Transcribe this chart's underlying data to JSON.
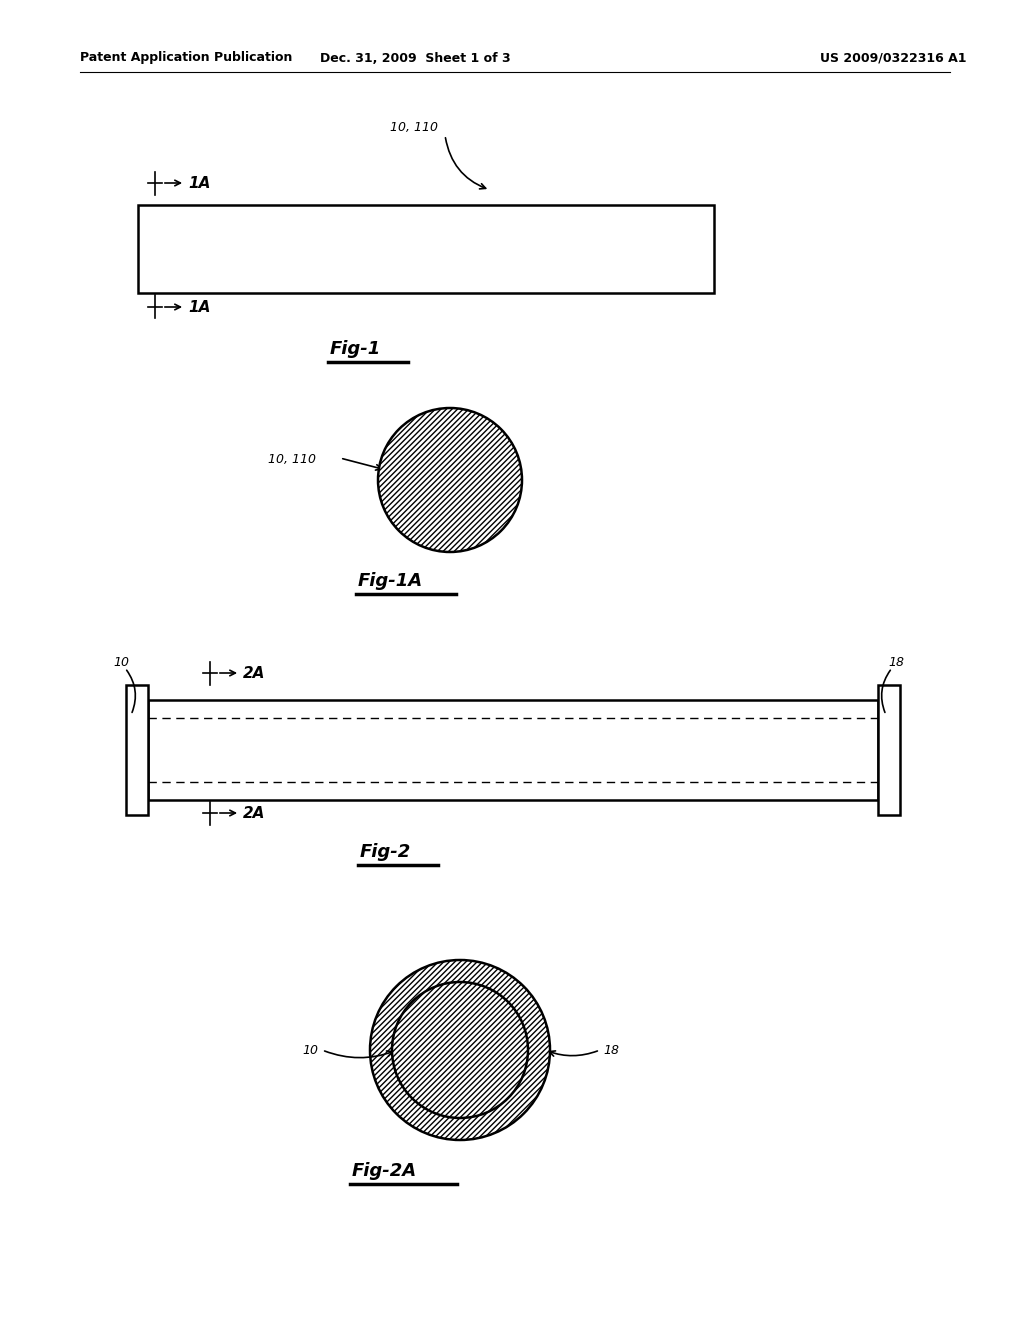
{
  "bg_color": "#ffffff",
  "header_left": "Patent Application Publication",
  "header_mid": "Dec. 31, 2009  Sheet 1 of 3",
  "header_right": "US 2009/0322316 A1",
  "fig1_label": "Fig-1",
  "fig1A_label": "Fig-1A",
  "fig2_label": "Fig-2",
  "fig2A_label": "Fig-2A"
}
